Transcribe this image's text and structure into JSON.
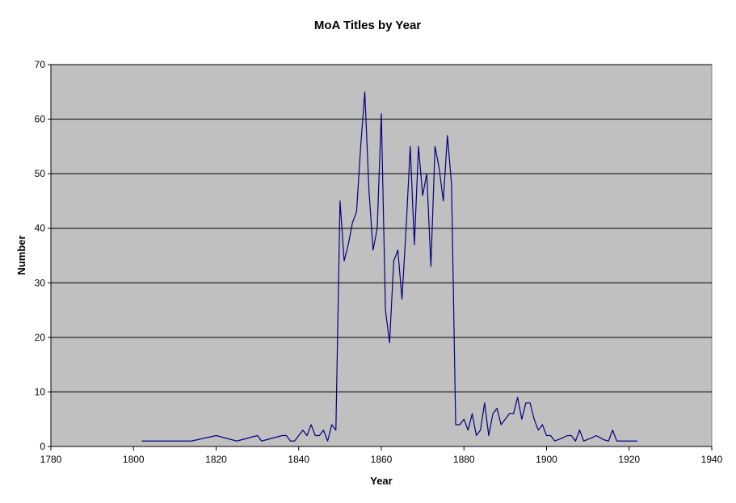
{
  "chart_data": {
    "type": "line",
    "title": "MoA Titles by Year",
    "xlabel": "Year",
    "ylabel": "Number",
    "xlim": [
      1780,
      1940
    ],
    "ylim": [
      0,
      70
    ],
    "xticks": [
      1780,
      1800,
      1820,
      1840,
      1860,
      1880,
      1900,
      1920,
      1940
    ],
    "yticks": [
      0,
      10,
      20,
      30,
      40,
      50,
      60,
      70
    ],
    "grid": "horizontal",
    "legend": "none",
    "plot_bg_color": "#c0c0c0",
    "line_color": "#000080",
    "series": [
      {
        "x": [
          1802,
          1814,
          1820,
          1825,
          1830,
          1831,
          1836,
          1837,
          1838,
          1839,
          1840,
          1841,
          1842,
          1843,
          1844,
          1845,
          1846,
          1847,
          1848,
          1849,
          1850,
          1851,
          1852,
          1853,
          1854,
          1855,
          1856,
          1857,
          1858,
          1859,
          1860,
          1861,
          1862,
          1863,
          1864,
          1865,
          1866,
          1867,
          1868,
          1869,
          1870,
          1871,
          1872,
          1873,
          1874,
          1875,
          1876,
          1877,
          1878,
          1879,
          1880,
          1881,
          1882,
          1883,
          1884,
          1885,
          1886,
          1887,
          1888,
          1889,
          1890,
          1891,
          1892,
          1893,
          1894,
          1895,
          1896,
          1897,
          1898,
          1899,
          1900,
          1901,
          1902,
          1903,
          1904,
          1905,
          1906,
          1907,
          1908,
          1909,
          1910,
          1911,
          1912,
          1913,
          1914,
          1915,
          1916,
          1917,
          1918,
          1919,
          1920,
          1921,
          1922
        ],
        "y": [
          1,
          1,
          2,
          1,
          2,
          1,
          2,
          2,
          1,
          1,
          2,
          3,
          2,
          4,
          2,
          2,
          3,
          1,
          4,
          3,
          45,
          34,
          37,
          41,
          43,
          55,
          65,
          47,
          36,
          40,
          61,
          25,
          19,
          34,
          36,
          27,
          40,
          55,
          37,
          55,
          46,
          50,
          33,
          55,
          51,
          45,
          57,
          48,
          4,
          4,
          5,
          3,
          6,
          2,
          3,
          8,
          2,
          6,
          7,
          4,
          5,
          6,
          6,
          9,
          5,
          8,
          8,
          5,
          3,
          4,
          2,
          2,
          1,
          1.3,
          1.6,
          2,
          2,
          1,
          3,
          1,
          1.3,
          1.6,
          2,
          1.6,
          1.2,
          1,
          3,
          1,
          1,
          1,
          1,
          1,
          1
        ]
      }
    ]
  }
}
